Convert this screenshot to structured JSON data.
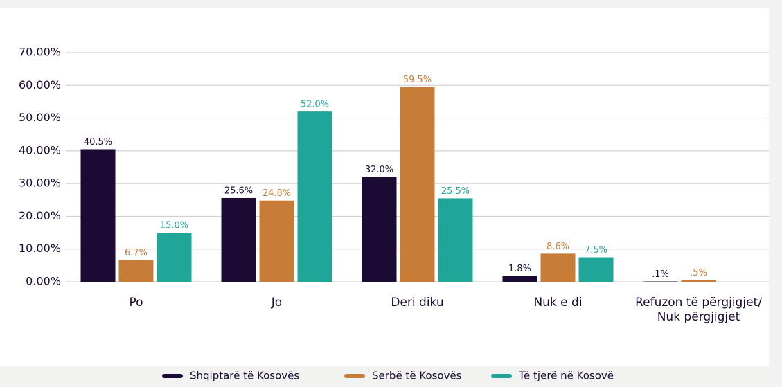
{
  "chart_data": {
    "type": "bar",
    "categories": [
      "Po",
      "Jo",
      "Deri diku",
      "Nuk e di",
      "Refuzon të përgjigjet/\nNuk përgjigjet"
    ],
    "series": [
      {
        "name": "Shqiptarë të Kosovës",
        "color": "#1b0a33",
        "values": [
          40.5,
          25.6,
          32.0,
          1.8,
          0.1
        ],
        "value_labels": [
          "40.5%",
          "25.6%",
          "32.0%",
          "1.8%",
          ".1%"
        ]
      },
      {
        "name": "Serbë të Kosovës",
        "color": "#c77c38",
        "values": [
          6.7,
          24.8,
          59.5,
          8.6,
          0.5
        ],
        "value_labels": [
          "6.7%",
          "24.8%",
          "59.5%",
          "8.6%",
          ".5%"
        ]
      },
      {
        "name": "Të tjerë në Kosovë",
        "color": "#1fa698",
        "values": [
          15.0,
          52.0,
          25.5,
          7.5,
          null
        ],
        "value_labels": [
          "15.0%",
          "52.0%",
          "25.5%",
          "7.5%",
          null
        ]
      }
    ],
    "ylim": [
      0,
      70
    ],
    "yticks": [
      {
        "value": 0,
        "label": "0.00%"
      },
      {
        "value": 10,
        "label": "10.00%"
      },
      {
        "value": 20,
        "label": "20.00%"
      },
      {
        "value": 30,
        "label": "30.00%"
      },
      {
        "value": 40,
        "label": "40.00%"
      },
      {
        "value": 50,
        "label": "50.00%"
      },
      {
        "value": 60,
        "label": "60.00%"
      },
      {
        "value": 70,
        "label": "70.00%"
      }
    ],
    "grid": true
  }
}
